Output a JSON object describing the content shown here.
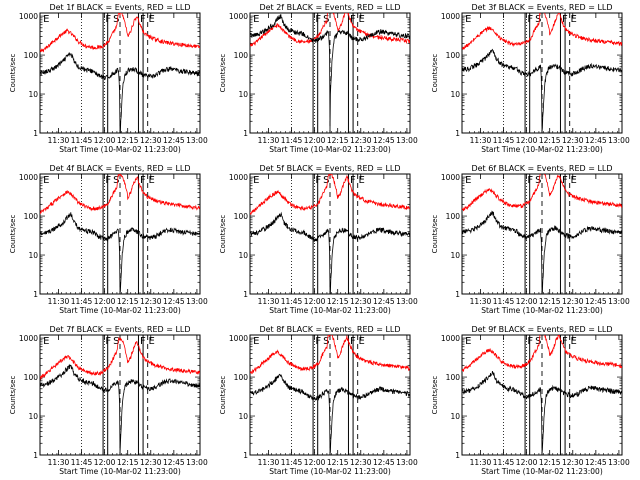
{
  "chart_data": {
    "type": "line",
    "layout": "3x3 grid of time-series panels",
    "shared": {
      "ylabel": "Counts/sec",
      "xlabel": "Start Time (10-Mar-02 11:23:00)",
      "x_tick_labels": [
        "11:30",
        "11:45",
        "12:00",
        "12:15",
        "12:30",
        "12:45",
        "13:00"
      ],
      "x_tick_minutes": [
        7,
        22,
        37,
        52,
        67,
        82,
        97
      ],
      "y_tick_labels": [
        "1",
        "10",
        "100",
        "1000"
      ],
      "y_tick_values": [
        1,
        10,
        100,
        1000
      ],
      "yscale": "log",
      "xlim_minutes": [
        -5,
        99
      ],
      "ylim": [
        1,
        1200
      ],
      "grid": false,
      "series_colors": {
        "events": "#000000",
        "lld": "#ff0000"
      },
      "markers": {
        "dotted": [
          22,
          37
        ],
        "solid": [
          36,
          39,
          59,
          62
        ],
        "dashed": [
          47,
          65
        ],
        "letters": [
          {
            "text": "E",
            "x": -3
          },
          {
            "text": "F",
            "x": 37.5
          },
          {
            "text": "S",
            "x": 42.5
          },
          {
            "text": "F",
            "x": 60
          },
          {
            "text": "E",
            "x": 65.5
          }
        ]
      }
    },
    "panels": [
      {
        "title": "Det 1f BLACK = Events, RED = LLD"
      },
      {
        "title": "Det 2f BLACK = Events, RED = LLD"
      },
      {
        "title": "Det 3f BLACK = Events, RED = LLD"
      },
      {
        "title": "Det 4f BLACK = Events, RED = LLD"
      },
      {
        "title": "Det 5f BLACK = Events, RED = LLD"
      },
      {
        "title": "Det 6f BLACK = Events, RED = LLD"
      },
      {
        "title": "Det 7f BLACK = Events, RED = LLD"
      },
      {
        "title": "Det 8f BLACK = Events, RED = LLD"
      },
      {
        "title": "Det 9f BLACK = Events, RED = LLD"
      }
    ],
    "lld_series_all": [
      [
        -5,
        120
      ],
      [
        0,
        160
      ],
      [
        5,
        250
      ],
      [
        10,
        360
      ],
      [
        13,
        420
      ],
      [
        16,
        330
      ],
      [
        20,
        220
      ],
      [
        25,
        170
      ],
      [
        30,
        155
      ],
      [
        34,
        160
      ],
      [
        37,
        180
      ],
      [
        40,
        230
      ],
      [
        43,
        400
      ],
      [
        45,
        550
      ],
      [
        46,
        1200
      ],
      [
        48,
        1200
      ],
      [
        50,
        700
      ],
      [
        52,
        300
      ],
      [
        54,
        400
      ],
      [
        56,
        700
      ],
      [
        58,
        1000
      ],
      [
        60,
        600
      ],
      [
        62,
        400
      ],
      [
        64,
        330
      ],
      [
        66,
        300
      ],
      [
        70,
        250
      ],
      [
        75,
        220
      ],
      [
        80,
        200
      ],
      [
        85,
        190
      ],
      [
        90,
        180
      ],
      [
        95,
        170
      ],
      [
        99,
        160
      ]
    ],
    "events_series_all": [
      [
        -5,
        35
      ],
      [
        0,
        38
      ],
      [
        5,
        48
      ],
      [
        10,
        68
      ],
      [
        13,
        95
      ],
      [
        15,
        110
      ],
      [
        17,
        70
      ],
      [
        20,
        50
      ],
      [
        25,
        42
      ],
      [
        30,
        38
      ],
      [
        33,
        30
      ],
      [
        35,
        28
      ],
      [
        37,
        25
      ],
      [
        40,
        28
      ],
      [
        43,
        35
      ],
      [
        46,
        42
      ],
      [
        47,
        0.1
      ],
      [
        48,
        4
      ],
      [
        50,
        30
      ],
      [
        52,
        40
      ],
      [
        55,
        45
      ],
      [
        58,
        40
      ],
      [
        60,
        35
      ],
      [
        62,
        30
      ],
      [
        66,
        28
      ],
      [
        70,
        30
      ],
      [
        75,
        40
      ],
      [
        80,
        45
      ],
      [
        85,
        40
      ],
      [
        90,
        38
      ],
      [
        95,
        35
      ],
      [
        99,
        34
      ]
    ]
  }
}
